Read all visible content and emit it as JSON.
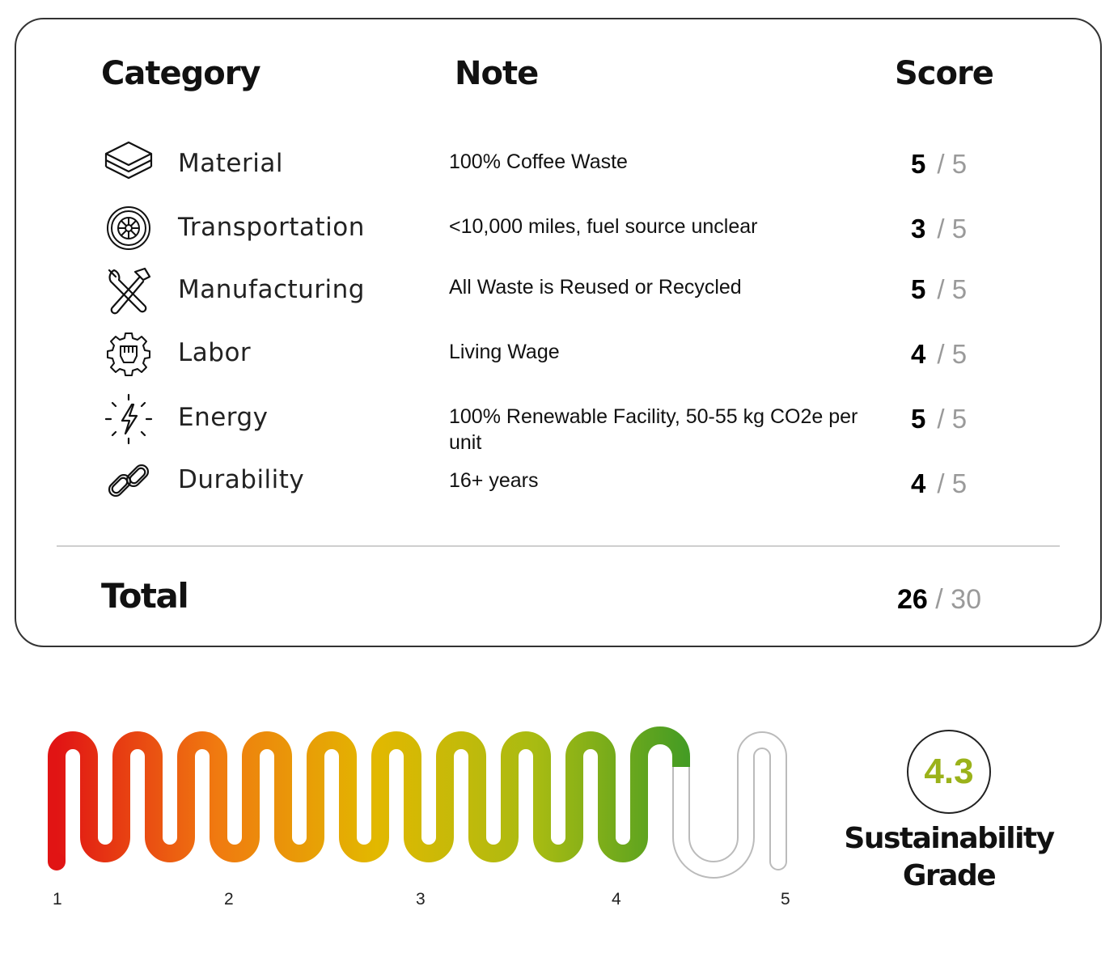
{
  "headers": {
    "category": "Category",
    "note": "Note",
    "score": "Score"
  },
  "rows": [
    {
      "icon": "layers-icon",
      "category": "Material",
      "note": "100% Coffee Waste",
      "score": "5",
      "max": "/ 5"
    },
    {
      "icon": "tire-icon",
      "category": "Transportation",
      "note": "<10,000 miles, fuel source unclear",
      "score": "3",
      "max": "/ 5"
    },
    {
      "icon": "tools-icon",
      "category": "Manufacturing",
      "note": "All Waste is Reused or Recycled",
      "score": "5",
      "max": "/ 5"
    },
    {
      "icon": "fist-gear-icon",
      "category": "Labor",
      "note": "Living Wage",
      "score": "4",
      "max": "/ 5"
    },
    {
      "icon": "lightning-icon",
      "category": "Energy",
      "note": "100% Renewable Facility, 50-55 kg CO2e per unit",
      "score": "5",
      "max": "/ 5"
    },
    {
      "icon": "chain-link-icon",
      "category": "Durability",
      "note": "16+ years",
      "score": "4",
      "max": "/ 5"
    }
  ],
  "total": {
    "label": "Total",
    "score": "26",
    "max": " / 30"
  },
  "gauge": {
    "value": 4.3,
    "min": 1,
    "max": 5,
    "ticks": [
      "1",
      "2",
      "3",
      "4",
      "5"
    ],
    "colors": [
      "#e11414",
      "#f07a10",
      "#e2b800",
      "#a8bb12",
      "#3f9a25"
    ],
    "empty_color": "#cccccc"
  },
  "grade": {
    "value": "4.3",
    "label_line1": "Sustainability",
    "label_line2": "Grade",
    "color": "#9bb21a"
  }
}
